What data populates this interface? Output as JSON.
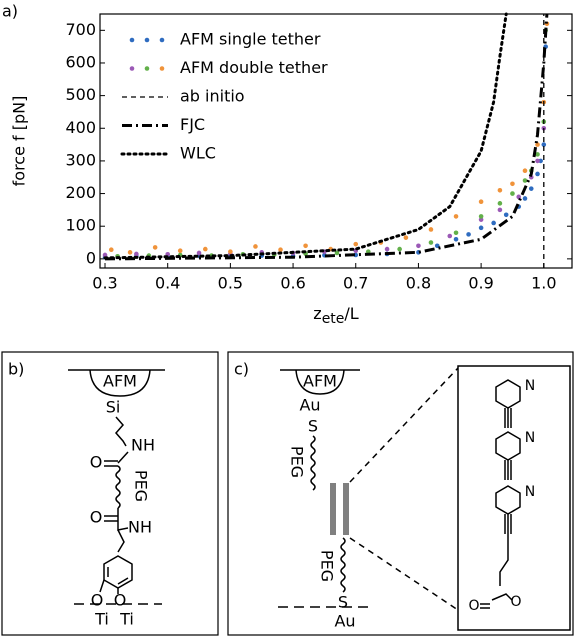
{
  "chart_data": {
    "type": "scatter",
    "panel_label": "a)",
    "y_label": "force f [pN]",
    "x_label": {
      "main": "z",
      "sub": "ete",
      "suffix": "/L"
    },
    "xlim": [
      0.292,
      1.045
    ],
    "ylim": [
      -28,
      750
    ],
    "xticks": [
      0.3,
      0.4,
      0.5,
      0.6,
      0.7,
      0.8,
      0.9,
      {
        "value": 1.0,
        "label": "1.0"
      }
    ],
    "yticks": [
      0,
      100,
      200,
      300,
      400,
      500,
      600,
      700
    ],
    "legend": "upper left",
    "series": [
      {
        "name": "AFM single tether",
        "kind": "scatter",
        "groups": [
          {
            "color": "#2f6cc0",
            "x": [
              0.3,
              0.35,
              0.4,
              0.45,
              0.5,
              0.55,
              0.6,
              0.65,
              0.7,
              0.75,
              0.8,
              0.83,
              0.86,
              0.88,
              0.9,
              0.92,
              0.94,
              0.96,
              0.97,
              0.98,
              0.99,
              0.995,
              1.0,
              1.003
            ],
            "y": [
              5,
              8,
              6,
              9,
              7,
              10,
              8,
              11,
              12,
              15,
              20,
              40,
              60,
              75,
              95,
              110,
              135,
              160,
              185,
              215,
              260,
              300,
              350,
              650
            ]
          }
        ]
      },
      {
        "name": "AFM double tether",
        "kind": "scatter",
        "groups": [
          {
            "color": "#9b59b6",
            "x": [
              0.3,
              0.35,
              0.4,
              0.45,
              0.5,
              0.55,
              0.6,
              0.65,
              0.7,
              0.75,
              0.8,
              0.85,
              0.9,
              0.93,
              0.96,
              0.98,
              0.99,
              1.0
            ],
            "y": [
              12,
              15,
              14,
              18,
              16,
              20,
              18,
              22,
              25,
              30,
              40,
              70,
              120,
              150,
              190,
              250,
              300,
              400
            ]
          },
          {
            "color": "#62b04a",
            "x": [
              0.32,
              0.37,
              0.42,
              0.47,
              0.52,
              0.57,
              0.62,
              0.67,
              0.72,
              0.77,
              0.82,
              0.86,
              0.9,
              0.93,
              0.95,
              0.97,
              0.98,
              0.99,
              1.0,
              1.003
            ],
            "y": [
              8,
              10,
              12,
              10,
              14,
              13,
              16,
              18,
              22,
              30,
              50,
              80,
              130,
              170,
              200,
              240,
              270,
              320,
              420,
              700
            ]
          },
          {
            "color": "#f0933a",
            "x": [
              0.31,
              0.34,
              0.38,
              0.42,
              0.46,
              0.5,
              0.54,
              0.58,
              0.62,
              0.66,
              0.7,
              0.74,
              0.78,
              0.82,
              0.86,
              0.9,
              0.93,
              0.95,
              0.97,
              0.99,
              1.0,
              1.005
            ],
            "y": [
              28,
              20,
              35,
              25,
              30,
              22,
              38,
              28,
              40,
              30,
              45,
              50,
              65,
              90,
              130,
              175,
              210,
              230,
              270,
              350,
              480,
              720
            ]
          }
        ]
      },
      {
        "name": "ab initio",
        "kind": "line",
        "style": "dashed",
        "color": "#000000",
        "x": [
          1.0,
          1.0
        ],
        "y": [
          -28,
          750
        ]
      },
      {
        "name": "FJC",
        "kind": "line",
        "style": "dashdot",
        "color": "#000000",
        "x": [
          0.3,
          0.6,
          0.8,
          0.9,
          0.95,
          0.98,
          0.99,
          1.0,
          1.005
        ],
        "y": [
          0,
          5,
          20,
          60,
          130,
          260,
          380,
          600,
          750
        ]
      },
      {
        "name": "WLC",
        "kind": "line",
        "style": "dotted",
        "color": "#000000",
        "x": [
          0.3,
          0.5,
          0.7,
          0.8,
          0.85,
          0.9,
          0.92,
          0.93,
          0.94
        ],
        "y": [
          3,
          10,
          30,
          90,
          160,
          330,
          480,
          620,
          750
        ]
      }
    ]
  },
  "panel_b": {
    "label": "b)",
    "texts": [
      "AFM",
      "Si",
      "NH",
      "O",
      "PEG",
      "O",
      "NH",
      "O",
      "O",
      "Ti",
      "Ti"
    ]
  },
  "panel_c": {
    "label": "c)",
    "texts": [
      "AFM",
      "Au",
      "S",
      "PEG",
      "PEG",
      "S",
      "Au",
      "N",
      "N",
      "N",
      "O",
      "O"
    ]
  }
}
